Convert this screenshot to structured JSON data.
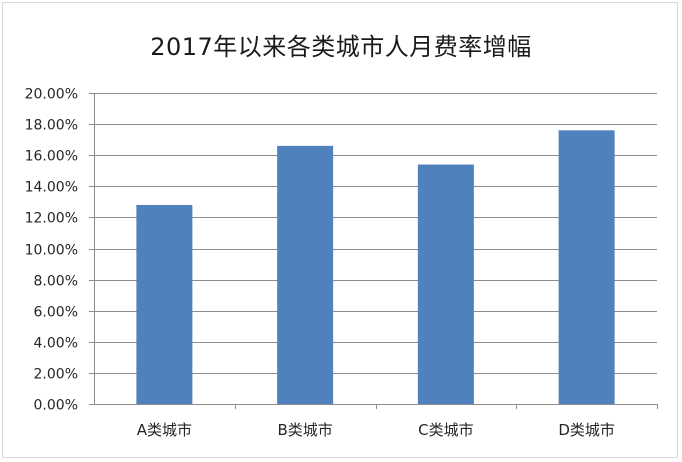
{
  "chart_data": {
    "type": "bar",
    "title": "2017年以来各类城市人月费率增幅",
    "categories": [
      "A类城市",
      "B类城市",
      "C类城市",
      "D类城市"
    ],
    "values": [
      0.128,
      0.166,
      0.154,
      0.176
    ],
    "ylim": [
      0,
      0.2
    ],
    "yticks": [
      0.0,
      0.02,
      0.04,
      0.06,
      0.08,
      0.1,
      0.12,
      0.14,
      0.16,
      0.18,
      0.2
    ],
    "ytick_labels": [
      "0.00%",
      "2.00%",
      "4.00%",
      "6.00%",
      "8.00%",
      "10.00%",
      "12.00%",
      "14.00%",
      "16.00%",
      "18.00%",
      "20.00%"
    ],
    "grid": true,
    "legend": "none",
    "bar_color": "#4f81bd",
    "grid_color": "#8c8c8c",
    "axis_color": "#8c8c8c"
  }
}
